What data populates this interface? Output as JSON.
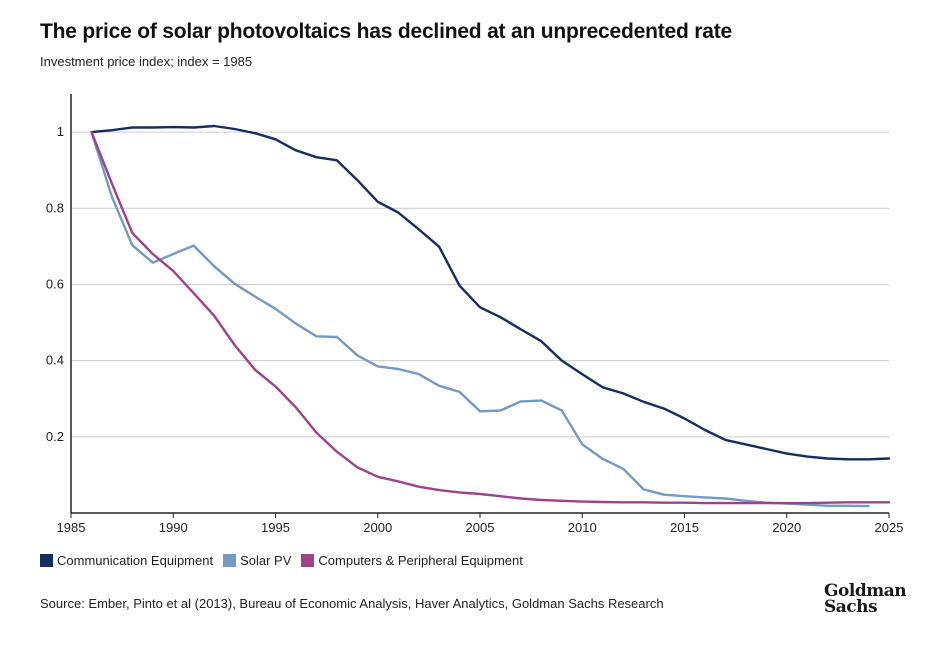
{
  "title": "The price of solar photovoltaics has declined at an unprecedented rate",
  "subtitle": "Investment price index; index = 1985",
  "source": "Source: Ember, Pinto et al (2013), Bureau of Economic Analysis, Haver Analytics, Goldman Sachs Research",
  "logo": {
    "line1": "Goldman",
    "line2": "Sachs"
  },
  "colors": {
    "communication": "#142d63",
    "solar": "#7399c6",
    "computers": "#a1418c",
    "grid": "#cccccc",
    "axis": "#222222"
  },
  "chart_data": {
    "type": "line",
    "xlim": [
      1985,
      2025
    ],
    "ylim": [
      0,
      1.1
    ],
    "x_ticks": [
      1985,
      1990,
      1995,
      2000,
      2005,
      2010,
      2015,
      2020,
      2025
    ],
    "y_ticks": [
      0.2,
      0.4,
      0.6,
      0.8,
      1
    ],
    "y_tick_labels": [
      "0.2",
      "0.4",
      "0.6",
      "0.8",
      "1"
    ],
    "grid": "horizontal",
    "legend_position": "bottom",
    "series": [
      {
        "name": "Communication Equipment",
        "x": [
          1986,
          1987,
          1988,
          1989,
          1990,
          1991,
          1992,
          1993,
          1994,
          1995,
          1996,
          1997,
          1998,
          1999,
          2000,
          2001,
          2002,
          2003,
          2004,
          2005,
          2006,
          2007,
          2008,
          2009,
          2010,
          2011,
          2012,
          2013,
          2014,
          2015,
          2016,
          2017,
          2018,
          2019,
          2020,
          2021,
          2022,
          2023,
          2024,
          2025
        ],
        "y": [
          1.0,
          1.005,
          1.012,
          1.012,
          1.013,
          1.012,
          1.016,
          1.008,
          0.997,
          0.981,
          0.952,
          0.934,
          0.926,
          0.874,
          0.817,
          0.789,
          0.745,
          0.699,
          0.597,
          0.54,
          0.514,
          0.482,
          0.451,
          0.4,
          0.364,
          0.33,
          0.314,
          0.292,
          0.274,
          0.248,
          0.218,
          0.192,
          0.18,
          0.168,
          0.156,
          0.148,
          0.143,
          0.141,
          0.141,
          0.143
        ]
      },
      {
        "name": "Solar PV",
        "x": [
          1986,
          1987,
          1988,
          1989,
          1990,
          1991,
          1992,
          1993,
          1994,
          1995,
          1996,
          1997,
          1998,
          1999,
          2000,
          2001,
          2002,
          2003,
          2004,
          2005,
          2006,
          2007,
          2008,
          2009,
          2010,
          2011,
          2012,
          2013,
          2014,
          2015,
          2016,
          2017,
          2018,
          2019,
          2020,
          2021,
          2022,
          2023,
          2024
        ],
        "y": [
          1.0,
          0.83,
          0.703,
          0.657,
          0.68,
          0.702,
          0.648,
          0.602,
          0.568,
          0.536,
          0.497,
          0.464,
          0.462,
          0.414,
          0.385,
          0.378,
          0.365,
          0.334,
          0.318,
          0.267,
          0.269,
          0.293,
          0.295,
          0.269,
          0.18,
          0.142,
          0.116,
          0.062,
          0.048,
          0.044,
          0.041,
          0.038,
          0.032,
          0.027,
          0.025,
          0.022,
          0.019,
          0.019,
          0.018
        ]
      },
      {
        "name": "Computers & Peripheral Equipment",
        "x": [
          1986,
          1987,
          1988,
          1989,
          1990,
          1991,
          1992,
          1993,
          1994,
          1995,
          1996,
          1997,
          1998,
          1999,
          2000,
          2001,
          2002,
          2003,
          2004,
          2005,
          2006,
          2007,
          2008,
          2009,
          2010,
          2011,
          2012,
          2013,
          2014,
          2015,
          2016,
          2017,
          2018,
          2019,
          2020,
          2021,
          2022,
          2023,
          2024,
          2025
        ],
        "y": [
          1.0,
          0.865,
          0.735,
          0.68,
          0.635,
          0.577,
          0.518,
          0.441,
          0.376,
          0.332,
          0.277,
          0.211,
          0.161,
          0.12,
          0.095,
          0.083,
          0.069,
          0.06,
          0.054,
          0.05,
          0.044,
          0.038,
          0.034,
          0.032,
          0.03,
          0.029,
          0.028,
          0.028,
          0.027,
          0.027,
          0.026,
          0.026,
          0.026,
          0.026,
          0.026,
          0.026,
          0.027,
          0.028,
          0.028,
          0.028
        ]
      }
    ]
  }
}
